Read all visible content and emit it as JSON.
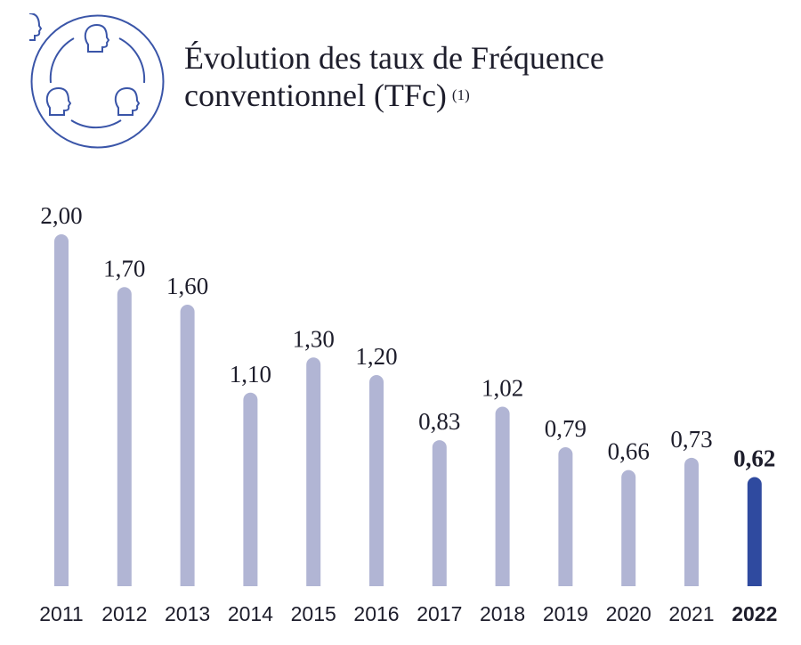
{
  "title": {
    "line1": "Évolution des taux de Fréquence",
    "line2": "conventionnel (TFc)",
    "footnote": "(1)"
  },
  "icon": "people-circle-icon",
  "colors": {
    "bar": "#b1b5d4",
    "highlight": "#2f4a9f",
    "icon": "#3a55a8"
  },
  "chart_data": {
    "type": "bar",
    "title": "Évolution des taux de Fréquence conventionnel (TFc) (1)",
    "categories": [
      "2011",
      "2012",
      "2013",
      "2014",
      "2015",
      "2016",
      "2017",
      "2018",
      "2019",
      "2020",
      "2021",
      "2022"
    ],
    "values": [
      2.0,
      1.7,
      1.6,
      1.1,
      1.3,
      1.2,
      0.83,
      1.02,
      0.79,
      0.66,
      0.73,
      0.62
    ],
    "labels": [
      "2,00",
      "1,70",
      "1,60",
      "1,10",
      "1,30",
      "1,20",
      "0,83",
      "1,02",
      "0,79",
      "0,66",
      "0,73",
      "0,62"
    ],
    "highlight": "2022",
    "xlabel": "",
    "ylabel": "",
    "ylim": [
      0,
      2.0
    ],
    "grid": false
  }
}
